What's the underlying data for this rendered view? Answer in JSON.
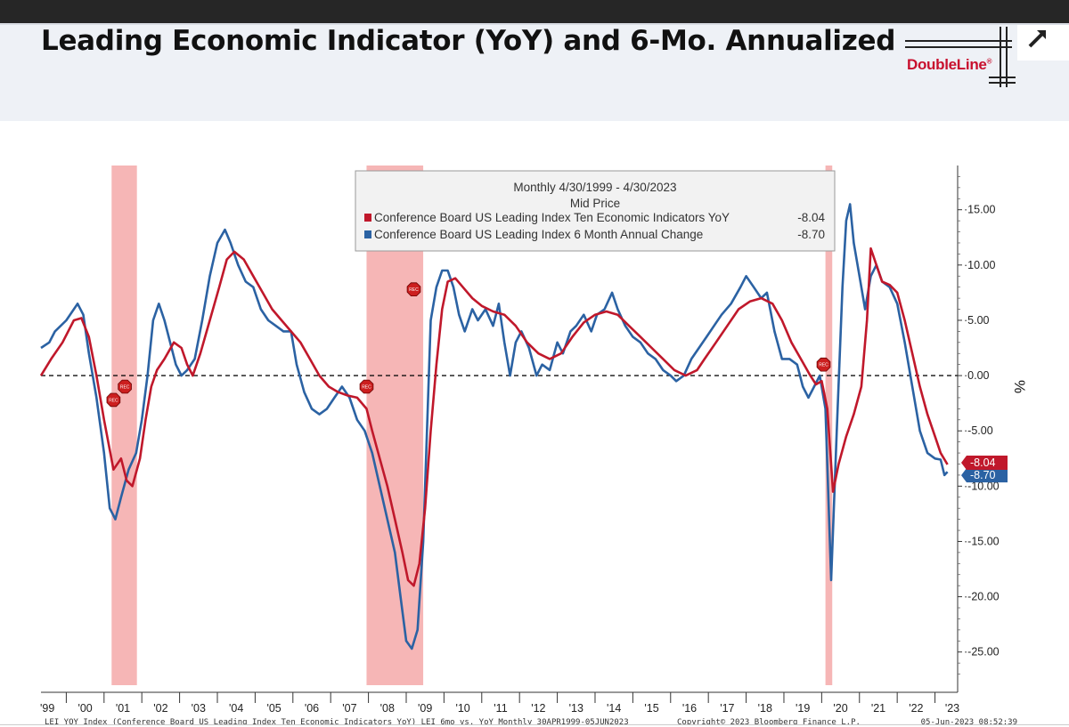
{
  "page": {
    "title": "Leading Economic Indicator (YoY) and 6-Mo. Annualized",
    "logo_text": "DoubleLine",
    "logo_mark": "®",
    "expand_icon": "expand-arrow-icon"
  },
  "chart_data": {
    "type": "line",
    "legend": {
      "header_line1": "Monthly 4/30/1999 - 4/30/2023",
      "header_line2": "Mid Price",
      "placement": "top-center"
    },
    "series": [
      {
        "name": "Conference Board US Leading Index Ten Economic Indicators YoY",
        "last_value": "-8.04",
        "color": "#c0182b",
        "points": [
          [
            1999.33,
            0
          ],
          [
            1999.6,
            1.5
          ],
          [
            1999.9,
            3
          ],
          [
            2000.2,
            5
          ],
          [
            2000.4,
            5.2
          ],
          [
            2000.6,
            3.5
          ],
          [
            2000.8,
            0
          ],
          [
            2001.0,
            -4
          ],
          [
            2001.25,
            -8.5
          ],
          [
            2001.45,
            -7.5
          ],
          [
            2001.6,
            -9.5
          ],
          [
            2001.75,
            -10
          ],
          [
            2001.95,
            -7.5
          ],
          [
            2002.1,
            -4
          ],
          [
            2002.25,
            -1
          ],
          [
            2002.4,
            0.5
          ],
          [
            2002.6,
            1.5
          ],
          [
            2002.85,
            3
          ],
          [
            2003.05,
            2.5
          ],
          [
            2003.2,
            1
          ],
          [
            2003.35,
            0
          ],
          [
            2003.55,
            2
          ],
          [
            2003.8,
            5
          ],
          [
            2004.05,
            8
          ],
          [
            2004.25,
            10.5
          ],
          [
            2004.45,
            11.2
          ],
          [
            2004.7,
            10.5
          ],
          [
            2004.95,
            9
          ],
          [
            2005.2,
            7.5
          ],
          [
            2005.45,
            6
          ],
          [
            2005.7,
            5
          ],
          [
            2005.95,
            4
          ],
          [
            2006.2,
            3
          ],
          [
            2006.45,
            1.5
          ],
          [
            2006.7,
            0
          ],
          [
            2006.95,
            -1
          ],
          [
            2007.2,
            -1.5
          ],
          [
            2007.45,
            -1.8
          ],
          [
            2007.7,
            -2
          ],
          [
            2007.95,
            -3
          ],
          [
            2008.1,
            -5
          ],
          [
            2008.3,
            -7.5
          ],
          [
            2008.5,
            -10
          ],
          [
            2008.7,
            -13
          ],
          [
            2008.9,
            -16
          ],
          [
            2009.05,
            -18.5
          ],
          [
            2009.2,
            -19
          ],
          [
            2009.35,
            -17
          ],
          [
            2009.5,
            -12
          ],
          [
            2009.65,
            -5
          ],
          [
            2009.8,
            1
          ],
          [
            2009.95,
            6
          ],
          [
            2010.1,
            8.5
          ],
          [
            2010.3,
            8.8
          ],
          [
            2010.5,
            8
          ],
          [
            2010.75,
            7
          ],
          [
            2011.0,
            6.3
          ],
          [
            2011.3,
            5.8
          ],
          [
            2011.6,
            5.5
          ],
          [
            2011.9,
            4.5
          ],
          [
            2012.2,
            3
          ],
          [
            2012.5,
            2
          ],
          [
            2012.8,
            1.5
          ],
          [
            2013.1,
            2
          ],
          [
            2013.4,
            3.5
          ],
          [
            2013.7,
            4.8
          ],
          [
            2014.0,
            5.5
          ],
          [
            2014.3,
            5.8
          ],
          [
            2014.6,
            5.5
          ],
          [
            2014.9,
            4.5
          ],
          [
            2015.2,
            3.5
          ],
          [
            2015.5,
            2.5
          ],
          [
            2015.8,
            1.5
          ],
          [
            2016.1,
            0.5
          ],
          [
            2016.4,
            0
          ],
          [
            2016.7,
            0.5
          ],
          [
            2016.9,
            1.5
          ],
          [
            2017.2,
            3
          ],
          [
            2017.5,
            4.5
          ],
          [
            2017.8,
            6
          ],
          [
            2018.1,
            6.7
          ],
          [
            2018.4,
            7
          ],
          [
            2018.7,
            6.5
          ],
          [
            2018.95,
            5
          ],
          [
            2019.2,
            3
          ],
          [
            2019.45,
            1.5
          ],
          [
            2019.7,
            0
          ],
          [
            2019.85,
            -0.8
          ],
          [
            2020.0,
            -0.5
          ],
          [
            2020.15,
            -3
          ],
          [
            2020.3,
            -10.5
          ],
          [
            2020.45,
            -8
          ],
          [
            2020.65,
            -5.5
          ],
          [
            2020.85,
            -3.5
          ],
          [
            2021.05,
            -1
          ],
          [
            2021.2,
            5
          ],
          [
            2021.3,
            11.5
          ],
          [
            2021.45,
            10
          ],
          [
            2021.6,
            8.5
          ],
          [
            2021.8,
            8.2
          ],
          [
            2022.0,
            7.5
          ],
          [
            2022.2,
            5
          ],
          [
            2022.4,
            2
          ],
          [
            2022.6,
            -1
          ],
          [
            2022.8,
            -3.5
          ],
          [
            2023.0,
            -5.5
          ],
          [
            2023.15,
            -7
          ],
          [
            2023.33,
            -8.04
          ]
        ]
      },
      {
        "name": "Conference Board US Leading Index 6 Month Annual Change",
        "last_value": "-8.70",
        "color": "#2b62a3",
        "points": [
          [
            1999.33,
            2.5
          ],
          [
            1999.55,
            3
          ],
          [
            1999.7,
            4
          ],
          [
            2000.0,
            5
          ],
          [
            2000.3,
            6.5
          ],
          [
            2000.45,
            5.5
          ],
          [
            2000.6,
            2
          ],
          [
            2000.8,
            -2
          ],
          [
            2001.0,
            -7
          ],
          [
            2001.15,
            -12
          ],
          [
            2001.3,
            -13
          ],
          [
            2001.45,
            -11
          ],
          [
            2001.65,
            -8.5
          ],
          [
            2001.85,
            -7
          ],
          [
            2002.0,
            -4
          ],
          [
            2002.15,
            0
          ],
          [
            2002.3,
            5
          ],
          [
            2002.45,
            6.5
          ],
          [
            2002.6,
            5
          ],
          [
            2002.75,
            3
          ],
          [
            2002.9,
            1
          ],
          [
            2003.05,
            0
          ],
          [
            2003.2,
            0.5
          ],
          [
            2003.4,
            1.5
          ],
          [
            2003.6,
            5
          ],
          [
            2003.8,
            9
          ],
          [
            2004.0,
            12
          ],
          [
            2004.2,
            13.2
          ],
          [
            2004.35,
            12
          ],
          [
            2004.55,
            10
          ],
          [
            2004.75,
            8.5
          ],
          [
            2004.95,
            8
          ],
          [
            2005.15,
            6
          ],
          [
            2005.35,
            5
          ],
          [
            2005.55,
            4.5
          ],
          [
            2005.75,
            4
          ],
          [
            2005.95,
            4
          ],
          [
            2006.1,
            1
          ],
          [
            2006.3,
            -1.5
          ],
          [
            2006.5,
            -3
          ],
          [
            2006.7,
            -3.5
          ],
          [
            2006.9,
            -3
          ],
          [
            2007.1,
            -2
          ],
          [
            2007.3,
            -1
          ],
          [
            2007.5,
            -2
          ],
          [
            2007.7,
            -4
          ],
          [
            2007.9,
            -5
          ],
          [
            2008.1,
            -7
          ],
          [
            2008.3,
            -10
          ],
          [
            2008.5,
            -13
          ],
          [
            2008.7,
            -16
          ],
          [
            2008.85,
            -20
          ],
          [
            2009.0,
            -24
          ],
          [
            2009.15,
            -24.7
          ],
          [
            2009.3,
            -23
          ],
          [
            2009.45,
            -15
          ],
          [
            2009.55,
            -5
          ],
          [
            2009.65,
            5
          ],
          [
            2009.8,
            8
          ],
          [
            2009.95,
            9.5
          ],
          [
            2010.1,
            9.5
          ],
          [
            2010.25,
            8
          ],
          [
            2010.4,
            5.5
          ],
          [
            2010.55,
            4
          ],
          [
            2010.75,
            6
          ],
          [
            2010.9,
            5
          ],
          [
            2011.1,
            6
          ],
          [
            2011.3,
            4.5
          ],
          [
            2011.45,
            6.5
          ],
          [
            2011.6,
            3
          ],
          [
            2011.75,
            0
          ],
          [
            2011.9,
            3
          ],
          [
            2012.05,
            4
          ],
          [
            2012.25,
            2.5
          ],
          [
            2012.45,
            0
          ],
          [
            2012.6,
            1
          ],
          [
            2012.8,
            0.5
          ],
          [
            2013.0,
            3
          ],
          [
            2013.15,
            2
          ],
          [
            2013.35,
            4
          ],
          [
            2013.5,
            4.5
          ],
          [
            2013.7,
            5.5
          ],
          [
            2013.9,
            4
          ],
          [
            2014.05,
            5.5
          ],
          [
            2014.25,
            6
          ],
          [
            2014.45,
            7.5
          ],
          [
            2014.6,
            6
          ],
          [
            2014.8,
            4.5
          ],
          [
            2015.0,
            3.5
          ],
          [
            2015.2,
            3
          ],
          [
            2015.4,
            2
          ],
          [
            2015.6,
            1.5
          ],
          [
            2015.8,
            0.5
          ],
          [
            2016.0,
            0
          ],
          [
            2016.15,
            -0.5
          ],
          [
            2016.35,
            0
          ],
          [
            2016.55,
            1.5
          ],
          [
            2016.75,
            2.5
          ],
          [
            2016.95,
            3.5
          ],
          [
            2017.15,
            4.5
          ],
          [
            2017.35,
            5.5
          ],
          [
            2017.6,
            6.5
          ],
          [
            2017.85,
            8
          ],
          [
            2018.0,
            9
          ],
          [
            2018.2,
            8
          ],
          [
            2018.4,
            7
          ],
          [
            2018.55,
            7.5
          ],
          [
            2018.75,
            4
          ],
          [
            2018.95,
            1.5
          ],
          [
            2019.15,
            1.5
          ],
          [
            2019.35,
            1
          ],
          [
            2019.5,
            -1
          ],
          [
            2019.65,
            -2
          ],
          [
            2019.8,
            -1
          ],
          [
            2019.95,
            0
          ],
          [
            2020.1,
            -3
          ],
          [
            2020.25,
            -18.5
          ],
          [
            2020.4,
            -5
          ],
          [
            2020.55,
            8
          ],
          [
            2020.65,
            14
          ],
          [
            2020.75,
            15.5
          ],
          [
            2020.85,
            12
          ],
          [
            2021.0,
            9
          ],
          [
            2021.15,
            6
          ],
          [
            2021.3,
            9
          ],
          [
            2021.45,
            10
          ],
          [
            2021.6,
            8.5
          ],
          [
            2021.8,
            8
          ],
          [
            2022.0,
            6.5
          ],
          [
            2022.2,
            3
          ],
          [
            2022.4,
            -1
          ],
          [
            2022.6,
            -5
          ],
          [
            2022.8,
            -7
          ],
          [
            2023.0,
            -7.5
          ],
          [
            2023.15,
            -7.6
          ],
          [
            2023.25,
            -9
          ],
          [
            2023.33,
            -8.7
          ]
        ]
      }
    ],
    "y_axis": {
      "label": "%",
      "range": [
        -28,
        19
      ],
      "ticks": [
        15,
        10,
        5,
        0,
        -5,
        -10,
        -15,
        -20,
        -25
      ],
      "tick_labels": [
        "15.00",
        "10.00",
        "5.00",
        "0.00",
        "-5.00",
        "-10.00",
        "-15.00",
        "-20.00",
        "-25.00"
      ]
    },
    "x_axis": {
      "range": [
        1999.33,
        2023.6
      ],
      "ticks": [
        1999.5,
        2000.5,
        2001.5,
        2002.5,
        2003.5,
        2004.5,
        2005.5,
        2006.5,
        2007.5,
        2008.5,
        2009.5,
        2010.5,
        2011.5,
        2012.5,
        2013.5,
        2014.5,
        2015.5,
        2016.5,
        2017.5,
        2018.5,
        2019.5,
        2020.5,
        2021.5,
        2022.5,
        2023.5
      ],
      "tick_labels": [
        "'99",
        "'00",
        "'01",
        "'02",
        "'03",
        "'04",
        "'05",
        "'06",
        "'07",
        "'08",
        "'09",
        "'10",
        "'11",
        "'12",
        "'13",
        "'14",
        "'15",
        "'16",
        "'17",
        "'18",
        "'19",
        "'20",
        "'21",
        "'22",
        "'23"
      ]
    },
    "recessions": [
      {
        "start": 2001.2,
        "end": 2001.87
      },
      {
        "start": 2007.95,
        "end": 2009.45
      },
      {
        "start": 2020.1,
        "end": 2020.28
      }
    ],
    "recession_markers": [
      {
        "x": 2001.25,
        "y": -2.2,
        "label": "REC",
        "color": "#cc1f1f"
      },
      {
        "x": 2001.55,
        "y": -1.0,
        "label": "REC",
        "color": "#cc1f1f"
      },
      {
        "x": 2007.95,
        "y": -1.0,
        "label": "REC",
        "color": "#cc1f1f"
      },
      {
        "x": 2009.2,
        "y": 7.8,
        "label": "REC",
        "color": "#cc1f1f"
      },
      {
        "x": 2020.05,
        "y": 1.0,
        "label": "REC",
        "color": "#cc1f1f"
      }
    ],
    "reference_line": {
      "y": 0,
      "style": "dashed"
    },
    "footer": {
      "left": "LEI YOY Index (Conference Board US Leading Index Ten Economic Indicators YoY) LEI 6mo vs. YoY  Monthly 30APR1999-05JUN2023",
      "center": "Copyright© 2023 Bloomberg Finance L.P.",
      "right": "05-Jun-2023 08:52:39"
    }
  }
}
